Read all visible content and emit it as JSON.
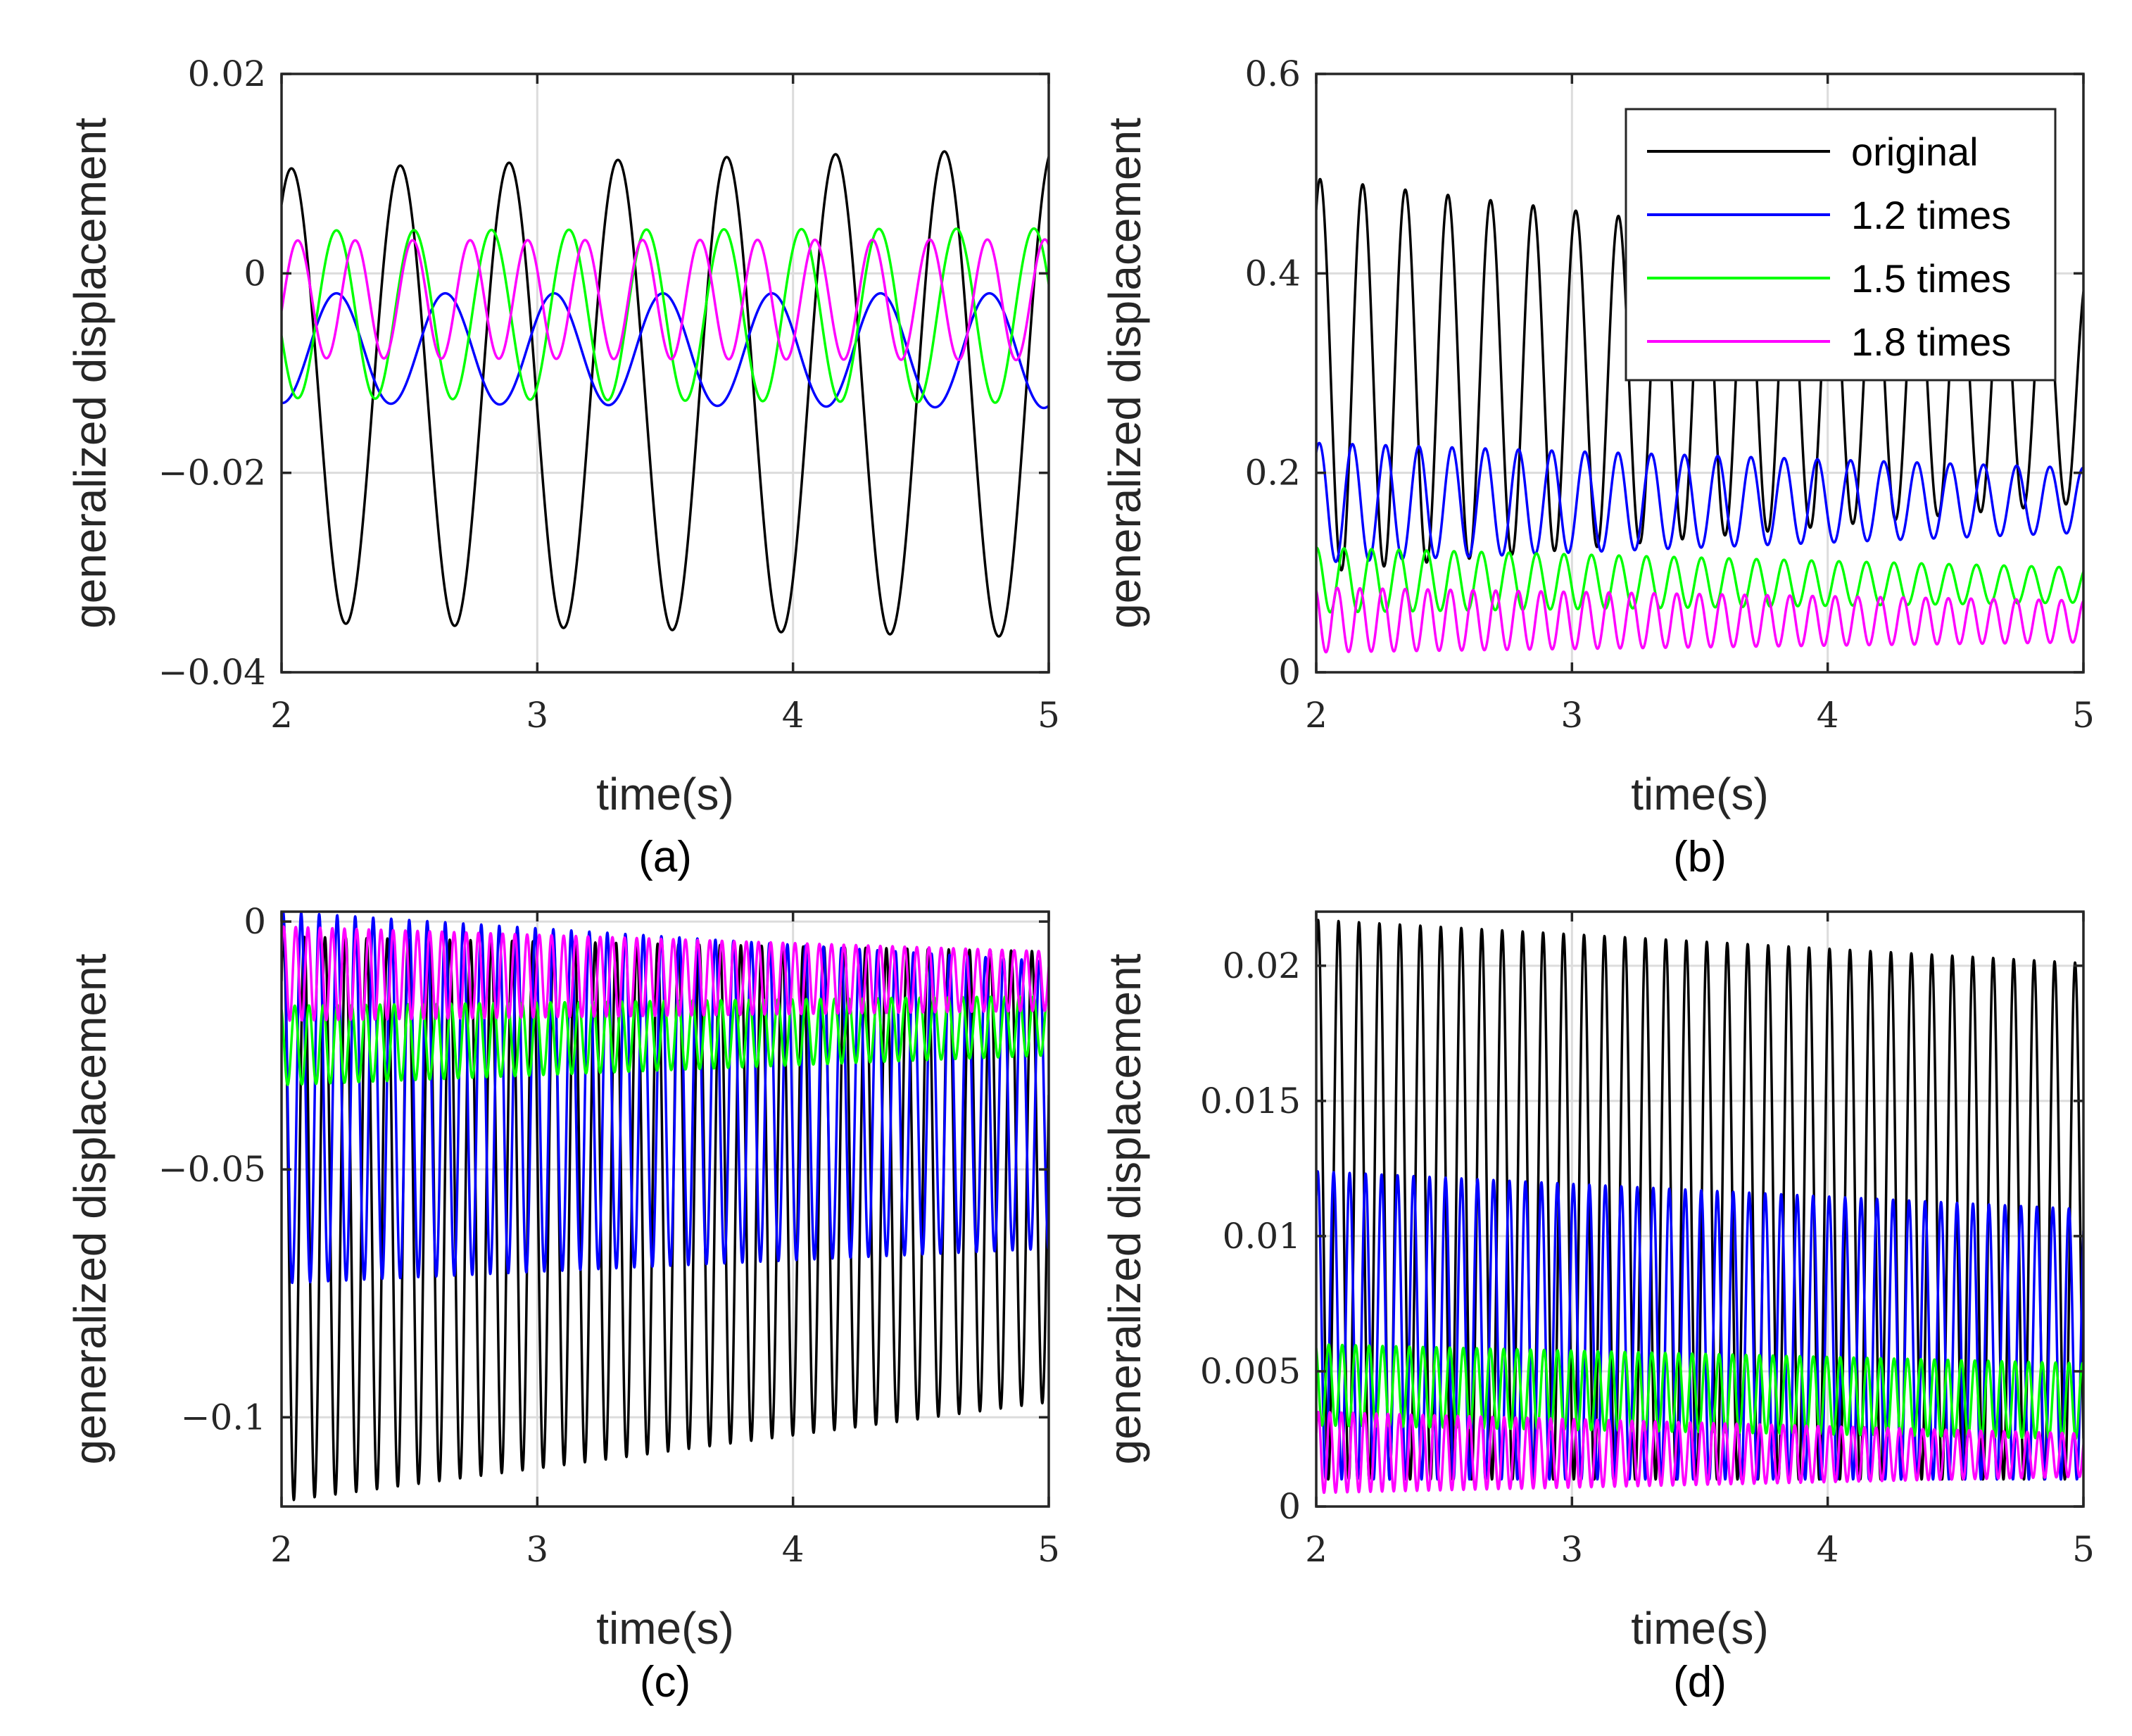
{
  "colors": {
    "original": "#000000",
    "1.2 times": "#0000ff",
    "1.5 times": "#00ff00",
    "1.8 times": "#ff00ff",
    "grid": "#dcdcdc",
    "axis": "#262626"
  },
  "chart_data": [
    {
      "type": "line",
      "panel": "a",
      "caption": "(a)",
      "xlabel": "time(s)",
      "ylabel": "generalized displacement",
      "xlim": [
        2,
        5
      ],
      "ylim": [
        -0.04,
        0.02
      ],
      "xticks": [
        2,
        3,
        4,
        5
      ],
      "xtick_labels": [
        "2",
        "3",
        "4",
        "5"
      ],
      "yticks": [
        -0.04,
        -0.02,
        0,
        0.02
      ],
      "ytick_labels": [
        "−0.04",
        "−0.02",
        "0",
        "0.02"
      ],
      "grid": true,
      "legend": false,
      "series": [
        {
          "name": "original",
          "color": "#000000",
          "freq": 2.35,
          "phase": 1.0,
          "min": [
            -0.035,
            -0.0365
          ],
          "max": [
            0.0105,
            0.0125
          ]
        },
        {
          "name": "1.2 times",
          "color": "#0000ff",
          "freq": 2.35,
          "phase": -1.6,
          "min": [
            -0.013,
            -0.0135
          ],
          "max": [
            -0.002,
            -0.002
          ]
        },
        {
          "name": "1.5 times",
          "color": "#00ff00",
          "freq": 3.3,
          "phase": 3.4,
          "min": [
            -0.0125,
            -0.013
          ],
          "max": [
            0.0043,
            0.0045
          ]
        },
        {
          "name": "1.8 times",
          "color": "#ff00ff",
          "freq": 4.45,
          "phase": -0.2,
          "min": [
            -0.0085,
            -0.0087
          ],
          "max": [
            0.0033,
            0.0034
          ]
        }
      ]
    },
    {
      "type": "line",
      "panel": "b",
      "caption": "(b)",
      "xlabel": "time(s)",
      "ylabel": "generalized displacement",
      "xlim": [
        2,
        5
      ],
      "ylim": [
        0,
        0.6
      ],
      "xticks": [
        2,
        3,
        4,
        5
      ],
      "xtick_labels": [
        "2",
        "3",
        "4",
        "5"
      ],
      "yticks": [
        0,
        0.2,
        0.4,
        0.6
      ],
      "ytick_labels": [
        "0",
        "0.2",
        "0.4",
        "0.6"
      ],
      "grid": true,
      "legend": true,
      "legend_position": "top-right",
      "legend_entries": [
        "original",
        "1.2 times",
        "1.5 times",
        "1.8 times"
      ],
      "series": [
        {
          "name": "original",
          "color": "#000000",
          "freq": 6.0,
          "phase": 1.0,
          "min": [
            0.1,
            0.17
          ],
          "max": [
            0.495,
            0.4
          ]
        },
        {
          "name": "1.2 times",
          "color": "#0000ff",
          "freq": 7.7,
          "phase": 1.0,
          "min": [
            0.11,
            0.14
          ],
          "max": [
            0.23,
            0.205
          ]
        },
        {
          "name": "1.5 times",
          "color": "#00ff00",
          "freq": 9.3,
          "phase": 1.5,
          "min": [
            0.06,
            0.07
          ],
          "max": [
            0.125,
            0.105
          ]
        },
        {
          "name": "1.8 times",
          "color": "#ff00ff",
          "freq": 11.3,
          "phase": 2.0,
          "min": [
            0.02,
            0.03
          ],
          "max": [
            0.085,
            0.072
          ]
        }
      ]
    },
    {
      "type": "line",
      "panel": "c",
      "caption": "(c)",
      "xlabel": "time(s)",
      "ylabel": "generalized displacement",
      "xlim": [
        2,
        5
      ],
      "ylim": [
        -0.118,
        0.002
      ],
      "xticks": [
        2,
        3,
        4,
        5
      ],
      "xtick_labels": [
        "2",
        "3",
        "4",
        "5"
      ],
      "yticks": [
        -0.1,
        -0.05,
        0
      ],
      "ytick_labels": [
        "−0.1",
        "−0.05",
        "0"
      ],
      "grid": true,
      "legend": false,
      "series": [
        {
          "name": "original",
          "color": "#000000",
          "freq": 12.3,
          "phase": 1.0,
          "min": [
            -0.117,
            -0.097
          ],
          "max": [
            -0.003,
            -0.006
          ]
        },
        {
          "name": "1.2 times",
          "color": "#0000ff",
          "freq": 14.2,
          "phase": 1.0,
          "min": [
            -0.073,
            -0.066
          ],
          "max": [
            0.002,
            -0.008
          ]
        },
        {
          "name": "1.5 times",
          "color": "#00ff00",
          "freq": 18.0,
          "phase": 2.0,
          "min": [
            -0.033,
            -0.027
          ],
          "max": [
            -0.017,
            -0.015
          ]
        },
        {
          "name": "1.8 times",
          "color": "#ff00ff",
          "freq": 21.0,
          "phase": 0.5,
          "min": [
            -0.02,
            -0.018
          ],
          "max": [
            -0.001,
            -0.006
          ]
        }
      ]
    },
    {
      "type": "line",
      "panel": "d",
      "caption": "(d)",
      "xlabel": "time(s)",
      "ylabel": "generalized displacement",
      "xlim": [
        2,
        5
      ],
      "ylim": [
        0,
        0.022
      ],
      "xticks": [
        2,
        3,
        4,
        5
      ],
      "xtick_labels": [
        "2",
        "3",
        "4",
        "5"
      ],
      "yticks": [
        0,
        0.005,
        0.01,
        0.015,
        0.02
      ],
      "ytick_labels": [
        "0",
        "0.005",
        "0.01",
        "0.015",
        "0.02"
      ],
      "grid": true,
      "legend": false,
      "series": [
        {
          "name": "original",
          "color": "#000000",
          "freq": 12.5,
          "phase": 1.0,
          "min": [
            0.001,
            0.001
          ],
          "max": [
            0.0217,
            0.0201
          ]
        },
        {
          "name": "1.2 times",
          "color": "#0000ff",
          "freq": 16.0,
          "phase": 1.0,
          "min": [
            0.001,
            0.001
          ],
          "max": [
            0.0124,
            0.011
          ]
        },
        {
          "name": "1.5 times",
          "color": "#00ff00",
          "freq": 19.0,
          "phase": 2.0,
          "min": [
            0.003,
            0.0025
          ],
          "max": [
            0.006,
            0.0053
          ]
        },
        {
          "name": "1.8 times",
          "color": "#ff00ff",
          "freq": 22.0,
          "phase": 0.5,
          "min": [
            0.0005,
            0.0011
          ],
          "max": [
            0.0035,
            0.0027
          ]
        }
      ]
    }
  ]
}
